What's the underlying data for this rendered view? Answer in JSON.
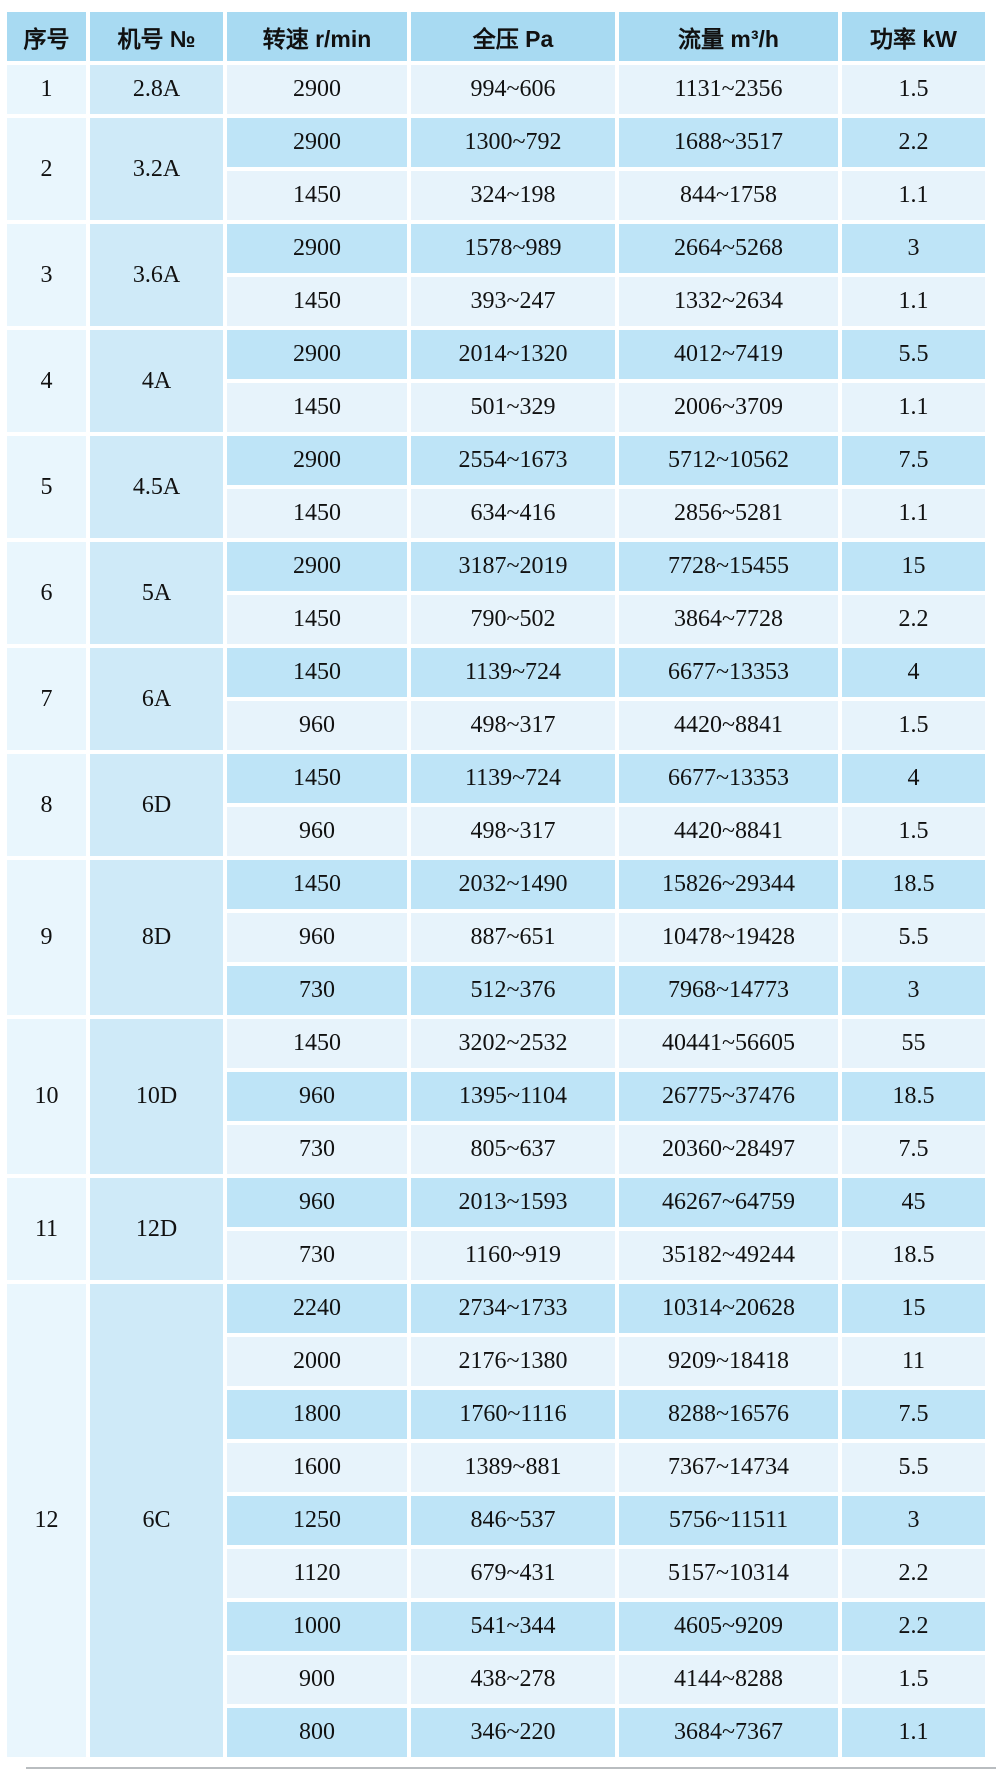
{
  "palette": {
    "header_bg": "#a8daf2",
    "row_dark_bg": "#bee4f7",
    "row_light_bg": "#e7f3fb",
    "seq_column_bg": "#e9f6fd",
    "model_column_bg": "#cfeaf8",
    "gap": "#ffffff",
    "text": "#111111"
  },
  "table": {
    "columns": [
      "序号",
      "机号 №",
      "转速 r/min",
      "全压 Pa",
      "流量 m³/h",
      "功率 kW"
    ],
    "groups": [
      {
        "seq": "1",
        "model": "2.8A",
        "rows": [
          {
            "speed": "2900",
            "pressure": "994~606",
            "flow": "1131~2356",
            "power": "1.5"
          }
        ]
      },
      {
        "seq": "2",
        "model": "3.2A",
        "rows": [
          {
            "speed": "2900",
            "pressure": "1300~792",
            "flow": "1688~3517",
            "power": "2.2"
          },
          {
            "speed": "1450",
            "pressure": "324~198",
            "flow": "844~1758",
            "power": "1.1"
          }
        ]
      },
      {
        "seq": "3",
        "model": "3.6A",
        "rows": [
          {
            "speed": "2900",
            "pressure": "1578~989",
            "flow": "2664~5268",
            "power": "3"
          },
          {
            "speed": "1450",
            "pressure": "393~247",
            "flow": "1332~2634",
            "power": "1.1"
          }
        ]
      },
      {
        "seq": "4",
        "model": "4A",
        "rows": [
          {
            "speed": "2900",
            "pressure": "2014~1320",
            "flow": "4012~7419",
            "power": "5.5"
          },
          {
            "speed": "1450",
            "pressure": "501~329",
            "flow": "2006~3709",
            "power": "1.1"
          }
        ]
      },
      {
        "seq": "5",
        "model": "4.5A",
        "rows": [
          {
            "speed": "2900",
            "pressure": "2554~1673",
            "flow": "5712~10562",
            "power": "7.5"
          },
          {
            "speed": "1450",
            "pressure": "634~416",
            "flow": "2856~5281",
            "power": "1.1"
          }
        ]
      },
      {
        "seq": "6",
        "model": "5A",
        "rows": [
          {
            "speed": "2900",
            "pressure": "3187~2019",
            "flow": "7728~15455",
            "power": "15"
          },
          {
            "speed": "1450",
            "pressure": "790~502",
            "flow": "3864~7728",
            "power": "2.2"
          }
        ]
      },
      {
        "seq": "7",
        "model": "6A",
        "rows": [
          {
            "speed": "1450",
            "pressure": "1139~724",
            "flow": "6677~13353",
            "power": "4"
          },
          {
            "speed": "960",
            "pressure": "498~317",
            "flow": "4420~8841",
            "power": "1.5"
          }
        ]
      },
      {
        "seq": "8",
        "model": "6D",
        "rows": [
          {
            "speed": "1450",
            "pressure": "1139~724",
            "flow": "6677~13353",
            "power": "4"
          },
          {
            "speed": "960",
            "pressure": "498~317",
            "flow": "4420~8841",
            "power": "1.5"
          }
        ]
      },
      {
        "seq": "9",
        "model": "8D",
        "rows": [
          {
            "speed": "1450",
            "pressure": "2032~1490",
            "flow": "15826~29344",
            "power": "18.5"
          },
          {
            "speed": "960",
            "pressure": "887~651",
            "flow": "10478~19428",
            "power": "5.5"
          },
          {
            "speed": "730",
            "pressure": "512~376",
            "flow": "7968~14773",
            "power": "3"
          }
        ]
      },
      {
        "seq": "10",
        "model": "10D",
        "rows": [
          {
            "speed": "1450",
            "pressure": "3202~2532",
            "flow": "40441~56605",
            "power": "55"
          },
          {
            "speed": "960",
            "pressure": "1395~1104",
            "flow": "26775~37476",
            "power": "18.5"
          },
          {
            "speed": "730",
            "pressure": "805~637",
            "flow": "20360~28497",
            "power": "7.5"
          }
        ]
      },
      {
        "seq": "11",
        "model": "12D",
        "rows": [
          {
            "speed": "960",
            "pressure": "2013~1593",
            "flow": "46267~64759",
            "power": "45"
          },
          {
            "speed": "730",
            "pressure": "1160~919",
            "flow": "35182~49244",
            "power": "18.5"
          }
        ]
      },
      {
        "seq": "12",
        "model": "6C",
        "rows": [
          {
            "speed": "2240",
            "pressure": "2734~1733",
            "flow": "10314~20628",
            "power": "15"
          },
          {
            "speed": "2000",
            "pressure": "2176~1380",
            "flow": "9209~18418",
            "power": "11"
          },
          {
            "speed": "1800",
            "pressure": "1760~1116",
            "flow": "8288~16576",
            "power": "7.5"
          },
          {
            "speed": "1600",
            "pressure": "1389~881",
            "flow": "7367~14734",
            "power": "5.5"
          },
          {
            "speed": "1250",
            "pressure": "846~537",
            "flow": "5756~11511",
            "power": "3"
          },
          {
            "speed": "1120",
            "pressure": "679~431",
            "flow": "5157~10314",
            "power": "2.2"
          },
          {
            "speed": "1000",
            "pressure": "541~344",
            "flow": "4605~9209",
            "power": "2.2"
          },
          {
            "speed": "900",
            "pressure": "438~278",
            "flow": "4144~8288",
            "power": "1.5"
          },
          {
            "speed": "800",
            "pressure": "346~220",
            "flow": "3684~7367",
            "power": "1.1"
          }
        ]
      }
    ]
  }
}
